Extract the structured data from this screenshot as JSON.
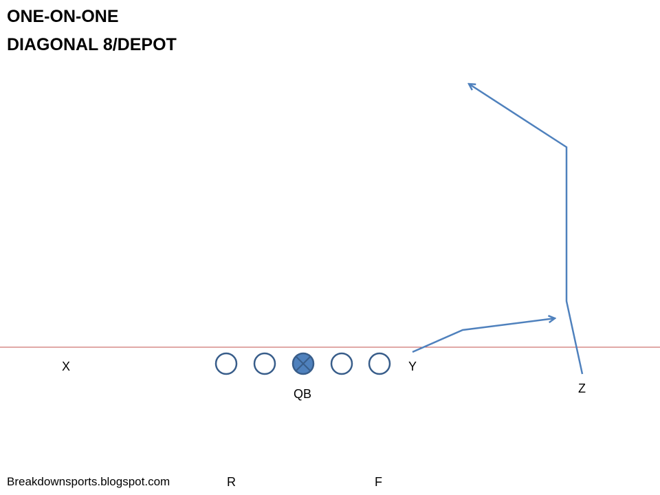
{
  "title_line1": "ONE-ON-ONE",
  "title_line2": "DIAGONAL 8/DEPOT",
  "players": {
    "x": "X",
    "y": "Y",
    "z": "Z",
    "qb": "QB",
    "r": "R",
    "f": "F"
  },
  "credit": "Breakdownsports.blogspot.com",
  "colors": {
    "line_of_scrimmage": "#c0504d",
    "route": "#4f81bd",
    "lineman_stroke": "#385d8a",
    "center_fill": "#4f81bd"
  }
}
